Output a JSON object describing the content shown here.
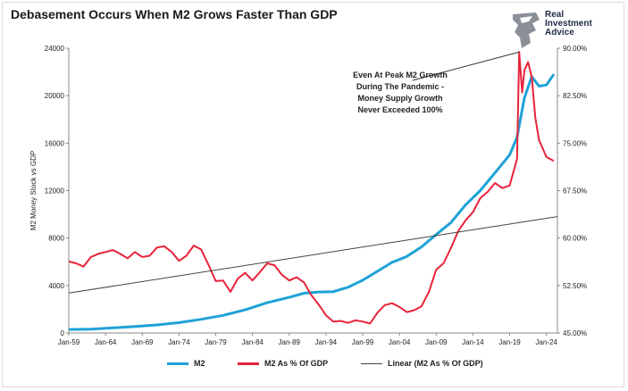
{
  "title": "Debasement Occurs When M2 Grows Faster Than GDP",
  "logo": {
    "line1": "Real",
    "line2": "Investment",
    "line3": "Advice"
  },
  "chart_data": {
    "type": "line",
    "ylabel": "M2 Money Stock vs GDP",
    "x_ticks": [
      "Jan-59",
      "Jan-64",
      "Jan-69",
      "Jan-74",
      "Jan-79",
      "Jan-84",
      "Jan-89",
      "Jan-94",
      "Jan-99",
      "Jan-04",
      "Jan-09",
      "Jan-14",
      "Jan-19",
      "Jan-24"
    ],
    "x_range": [
      1959,
      2025.5
    ],
    "y_left_range": [
      0,
      24000
    ],
    "y_left_ticks": [
      "0",
      "4000",
      "8000",
      "12000",
      "16000",
      "20000",
      "24000"
    ],
    "y_right_range": [
      45,
      90
    ],
    "y_right_ticks": [
      "45.00%",
      "52.50%",
      "60.00%",
      "67.50%",
      "75.00%",
      "82.50%",
      "90.00%"
    ],
    "series": [
      {
        "name": "M2",
        "axis": "left",
        "color": "#1fa2d6",
        "points": [
          [
            1959,
            290
          ],
          [
            1962,
            320
          ],
          [
            1965,
            430
          ],
          [
            1968,
            550
          ],
          [
            1971,
            680
          ],
          [
            1974,
            870
          ],
          [
            1977,
            1150
          ],
          [
            1980,
            1480
          ],
          [
            1983,
            1950
          ],
          [
            1986,
            2550
          ],
          [
            1989,
            3000
          ],
          [
            1991,
            3350
          ],
          [
            1993,
            3450
          ],
          [
            1995,
            3480
          ],
          [
            1997,
            3850
          ],
          [
            1999,
            4450
          ],
          [
            2001,
            5200
          ],
          [
            2003,
            5950
          ],
          [
            2005,
            6450
          ],
          [
            2007,
            7250
          ],
          [
            2009,
            8300
          ],
          [
            2011,
            9300
          ],
          [
            2013,
            10800
          ],
          [
            2015,
            12000
          ],
          [
            2017,
            13500
          ],
          [
            2019,
            15000
          ],
          [
            2020,
            16500
          ],
          [
            2021,
            19800
          ],
          [
            2022,
            21600
          ],
          [
            2023,
            20800
          ],
          [
            2024,
            20900
          ],
          [
            2025,
            21800
          ]
        ]
      },
      {
        "name": "M2 As % Of GDP",
        "axis": "right",
        "color": "#e8233a",
        "points": [
          [
            1959,
            56.3
          ],
          [
            1960,
            56.0
          ],
          [
            1961,
            55.5
          ],
          [
            1962,
            57.0
          ],
          [
            1963,
            57.5
          ],
          [
            1964,
            57.8
          ],
          [
            1965,
            58.1
          ],
          [
            1966,
            57.5
          ],
          [
            1967,
            56.8
          ],
          [
            1968,
            57.8
          ],
          [
            1969,
            57.0
          ],
          [
            1970,
            57.2
          ],
          [
            1971,
            58.5
          ],
          [
            1972,
            58.7
          ],
          [
            1973,
            57.8
          ],
          [
            1974,
            56.4
          ],
          [
            1975,
            57.2
          ],
          [
            1976,
            58.8
          ],
          [
            1977,
            58.2
          ],
          [
            1978,
            55.8
          ],
          [
            1979,
            53.2
          ],
          [
            1980,
            53.3
          ],
          [
            1981,
            51.5
          ],
          [
            1982,
            53.6
          ],
          [
            1983,
            54.5
          ],
          [
            1984,
            53.3
          ],
          [
            1985,
            54.6
          ],
          [
            1986,
            56.0
          ],
          [
            1987,
            55.7
          ],
          [
            1988,
            54.2
          ],
          [
            1989,
            53.3
          ],
          [
            1990,
            53.8
          ],
          [
            1991,
            53.0
          ],
          [
            1992,
            51.0
          ],
          [
            1993,
            49.5
          ],
          [
            1994,
            47.8
          ],
          [
            1995,
            46.8
          ],
          [
            1996,
            46.9
          ],
          [
            1997,
            46.6
          ],
          [
            1998,
            47.0
          ],
          [
            1999,
            46.8
          ],
          [
            2000,
            46.5
          ],
          [
            2001,
            48.2
          ],
          [
            2002,
            49.4
          ],
          [
            2003,
            49.7
          ],
          [
            2004,
            49.1
          ],
          [
            2005,
            48.3
          ],
          [
            2006,
            48.6
          ],
          [
            2007,
            49.2
          ],
          [
            2008,
            51.5
          ],
          [
            2009,
            55.0
          ],
          [
            2010,
            56.0
          ],
          [
            2011,
            58.4
          ],
          [
            2012,
            61.1
          ],
          [
            2013,
            62.8
          ],
          [
            2014,
            64.1
          ],
          [
            2015,
            66.3
          ],
          [
            2016,
            67.3
          ],
          [
            2017,
            68.7
          ],
          [
            2018,
            67.9
          ],
          [
            2019,
            68.3
          ],
          [
            2020,
            72.5
          ],
          [
            2020.3,
            89.4
          ],
          [
            2020.7,
            83.0
          ],
          [
            2021,
            86.5
          ],
          [
            2021.5,
            87.8
          ],
          [
            2022,
            85.5
          ],
          [
            2022.5,
            79.0
          ],
          [
            2023,
            75.5
          ],
          [
            2024,
            72.8
          ],
          [
            2025,
            72.2
          ]
        ]
      },
      {
        "name": "Linear (M2 As % Of GDP)",
        "axis": "right",
        "color": "#444444",
        "points": [
          [
            1959,
            51.3
          ],
          [
            2025.5,
            63.4
          ]
        ]
      }
    ],
    "annotation": {
      "lines": [
        "Even At Peak M2 Growth",
        "During The Pandemic -",
        "Money Supply Growth",
        "Never Exceeded 100%"
      ],
      "points_to": [
        2020.3,
        89.4
      ]
    },
    "legend": [
      "M2",
      "M2 As % Of GDP",
      "Linear (M2 As % Of GDP)"
    ],
    "legend_position": "bottom"
  }
}
